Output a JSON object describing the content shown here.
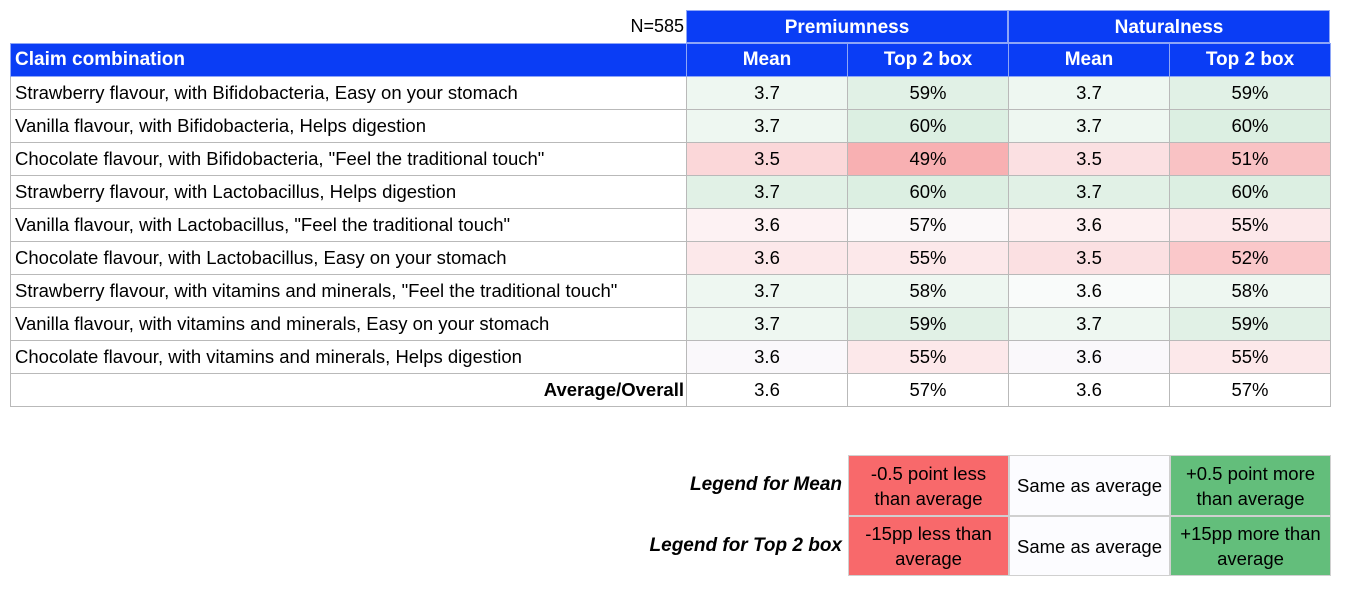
{
  "sample": "N=585",
  "groups": [
    "Premiumness",
    "Naturalness"
  ],
  "header": {
    "claim": "Claim combination",
    "cols": [
      "Mean",
      "Top 2 box",
      "Mean",
      "Top 2 box"
    ]
  },
  "rows": [
    {
      "claim": "Strawberry flavour, with Bifidobacteria, Easy on your stomach",
      "values": [
        "3.7",
        "59%",
        "3.7",
        "59%"
      ],
      "colors": [
        "#eef7f1",
        "#e1f1e6",
        "#eef7f1",
        "#e1f1e6"
      ]
    },
    {
      "claim": "Vanilla flavour, with Bifidobacteria, Helps digestion",
      "values": [
        "3.7",
        "60%",
        "3.7",
        "60%"
      ],
      "colors": [
        "#eef7f1",
        "#dcefe2",
        "#eef7f1",
        "#dcefe2"
      ]
    },
    {
      "claim": "Chocolate flavour, with Bifidobacteria, \"Feel the traditional touch\"",
      "values": [
        "3.5",
        "49%",
        "3.5",
        "51%"
      ],
      "colors": [
        "#fbd7d9",
        "#f8b0b2",
        "#fbe0e2",
        "#f9c2c4"
      ]
    },
    {
      "claim": "Strawberry flavour, with Lactobacillus, Helps digestion",
      "values": [
        "3.7",
        "60%",
        "3.7",
        "60%"
      ],
      "colors": [
        "#e1f1e6",
        "#dcefe2",
        "#e1f1e6",
        "#dcefe2"
      ]
    },
    {
      "claim": "Vanilla flavour, with Lactobacillus, \"Feel the traditional touch\"",
      "values": [
        "3.6",
        "57%",
        "3.6",
        "55%"
      ],
      "colors": [
        "#fdf2f3",
        "#fbf8f9",
        "#fdf0f1",
        "#fce8ea"
      ]
    },
    {
      "claim": "Chocolate flavour, with Lactobacillus, Easy on your stomach",
      "values": [
        "3.6",
        "55%",
        "3.5",
        "52%"
      ],
      "colors": [
        "#fce8ea",
        "#fce8ea",
        "#fbe0e2",
        "#fac8ca"
      ]
    },
    {
      "claim": "Strawberry flavour, with vitamins and minerals, \"Feel the traditional touch\"",
      "values": [
        "3.7",
        "58%",
        "3.6",
        "58%"
      ],
      "colors": [
        "#eef7f1",
        "#eef7f1",
        "#f9fbfa",
        "#eef7f1"
      ]
    },
    {
      "claim": "Vanilla flavour, with vitamins and minerals, Easy on your stomach",
      "values": [
        "3.7",
        "59%",
        "3.7",
        "59%"
      ],
      "colors": [
        "#eef7f1",
        "#e1f1e6",
        "#eef7f1",
        "#e1f1e6"
      ]
    },
    {
      "claim": "Chocolate flavour, with vitamins and minerals, Helps digestion",
      "values": [
        "3.6",
        "55%",
        "3.6",
        "55%"
      ],
      "colors": [
        "#faf8fb",
        "#fce8ea",
        "#faf8fb",
        "#fce8ea"
      ]
    }
  ],
  "average": {
    "label": "Average/Overall",
    "values": [
      "3.6",
      "57%",
      "3.6",
      "57%"
    ]
  },
  "legend": {
    "mean": {
      "label": "Legend for Mean",
      "cells": [
        {
          "text": "-0.5 point less than average",
          "color": "#f8696b"
        },
        {
          "text": "Same as average",
          "color": "#fcfcff"
        },
        {
          "text": "+0.5 point more than average",
          "color": "#63be7b"
        }
      ]
    },
    "top2": {
      "label": "Legend for Top 2 box",
      "cells": [
        {
          "text": "-15pp less than average",
          "color": "#f8696b"
        },
        {
          "text": "Same as average",
          "color": "#fcfcff"
        },
        {
          "text": "+15pp more than average",
          "color": "#63be7b"
        }
      ]
    }
  },
  "colors": {
    "header_blue": "#0a3df5"
  }
}
